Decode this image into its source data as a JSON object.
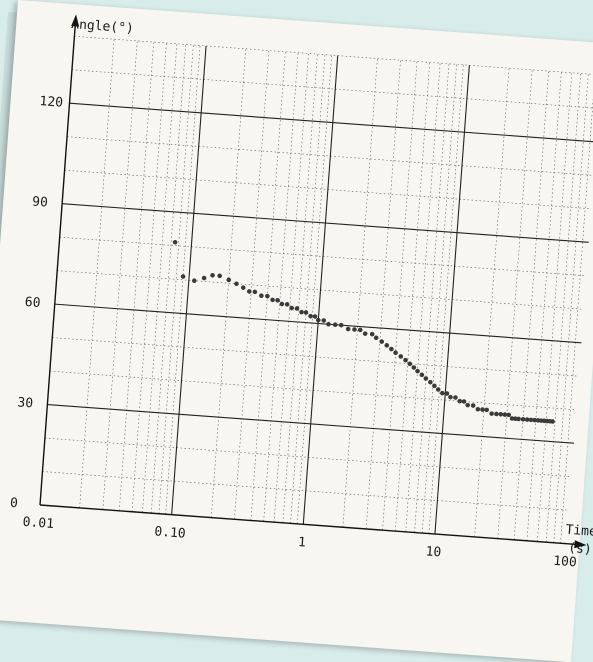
{
  "chart_data": {
    "type": "scatter",
    "title": "",
    "ylabel": "Angle(°)",
    "xlabel": "Time",
    "xunit": "(s)",
    "x_scale": "log",
    "xlim": [
      0.01,
      100
    ],
    "ylim": [
      0,
      140
    ],
    "x_ticks": [
      "0.01",
      "0.10",
      "1",
      "10",
      "100"
    ],
    "y_ticks": [
      "0",
      "30",
      "60",
      "90",
      "120"
    ],
    "grid": true,
    "marker_color": "#3a3a3a",
    "series": [
      {
        "points": [
          [
            0.075,
            81
          ],
          [
            0.09,
            71
          ],
          [
            0.11,
            70
          ],
          [
            0.13,
            71
          ],
          [
            0.15,
            72
          ],
          [
            0.17,
            72
          ],
          [
            0.2,
            71
          ],
          [
            0.23,
            70
          ],
          [
            0.26,
            69
          ],
          [
            0.29,
            68
          ],
          [
            0.32,
            68
          ],
          [
            0.36,
            67
          ],
          [
            0.4,
            67
          ],
          [
            0.44,
            66
          ],
          [
            0.48,
            66
          ],
          [
            0.52,
            65
          ],
          [
            0.57,
            65
          ],
          [
            0.62,
            64
          ],
          [
            0.68,
            64
          ],
          [
            0.74,
            63
          ],
          [
            0.8,
            63
          ],
          [
            0.87,
            62
          ],
          [
            0.94,
            62
          ],
          [
            1.0,
            61
          ],
          [
            1.1,
            61
          ],
          [
            1.2,
            60
          ],
          [
            1.35,
            60
          ],
          [
            1.5,
            60
          ],
          [
            1.7,
            59
          ],
          [
            1.9,
            59
          ],
          [
            2.1,
            59
          ],
          [
            2.3,
            58
          ],
          [
            2.6,
            58
          ],
          [
            2.8,
            57
          ],
          [
            3.1,
            56
          ],
          [
            3.4,
            55
          ],
          [
            3.7,
            54
          ],
          [
            4.0,
            53
          ],
          [
            4.4,
            52
          ],
          [
            4.8,
            51
          ],
          [
            5.2,
            50
          ],
          [
            5.6,
            49
          ],
          [
            6.0,
            48
          ],
          [
            6.5,
            47
          ],
          [
            7.0,
            46
          ],
          [
            7.6,
            45
          ],
          [
            8.2,
            44
          ],
          [
            8.8,
            43
          ],
          [
            9.5,
            42
          ],
          [
            10.3,
            42
          ],
          [
            11,
            41
          ],
          [
            12,
            41
          ],
          [
            13,
            40
          ],
          [
            14,
            40
          ],
          [
            15,
            39
          ],
          [
            16.5,
            39
          ],
          [
            18,
            38
          ],
          [
            19.5,
            38
          ],
          [
            21,
            38
          ],
          [
            23,
            37
          ],
          [
            25,
            37
          ],
          [
            27,
            37
          ],
          [
            29,
            37
          ],
          [
            31,
            37
          ],
          [
            33,
            36
          ],
          [
            35,
            36
          ],
          [
            37,
            36
          ],
          [
            40,
            36
          ],
          [
            43,
            36
          ],
          [
            46,
            36
          ],
          [
            49,
            36
          ],
          [
            52,
            36
          ],
          [
            55,
            36
          ],
          [
            58,
            36
          ],
          [
            61,
            36
          ],
          [
            64,
            36
          ],
          [
            67,
            36
          ]
        ]
      }
    ]
  }
}
